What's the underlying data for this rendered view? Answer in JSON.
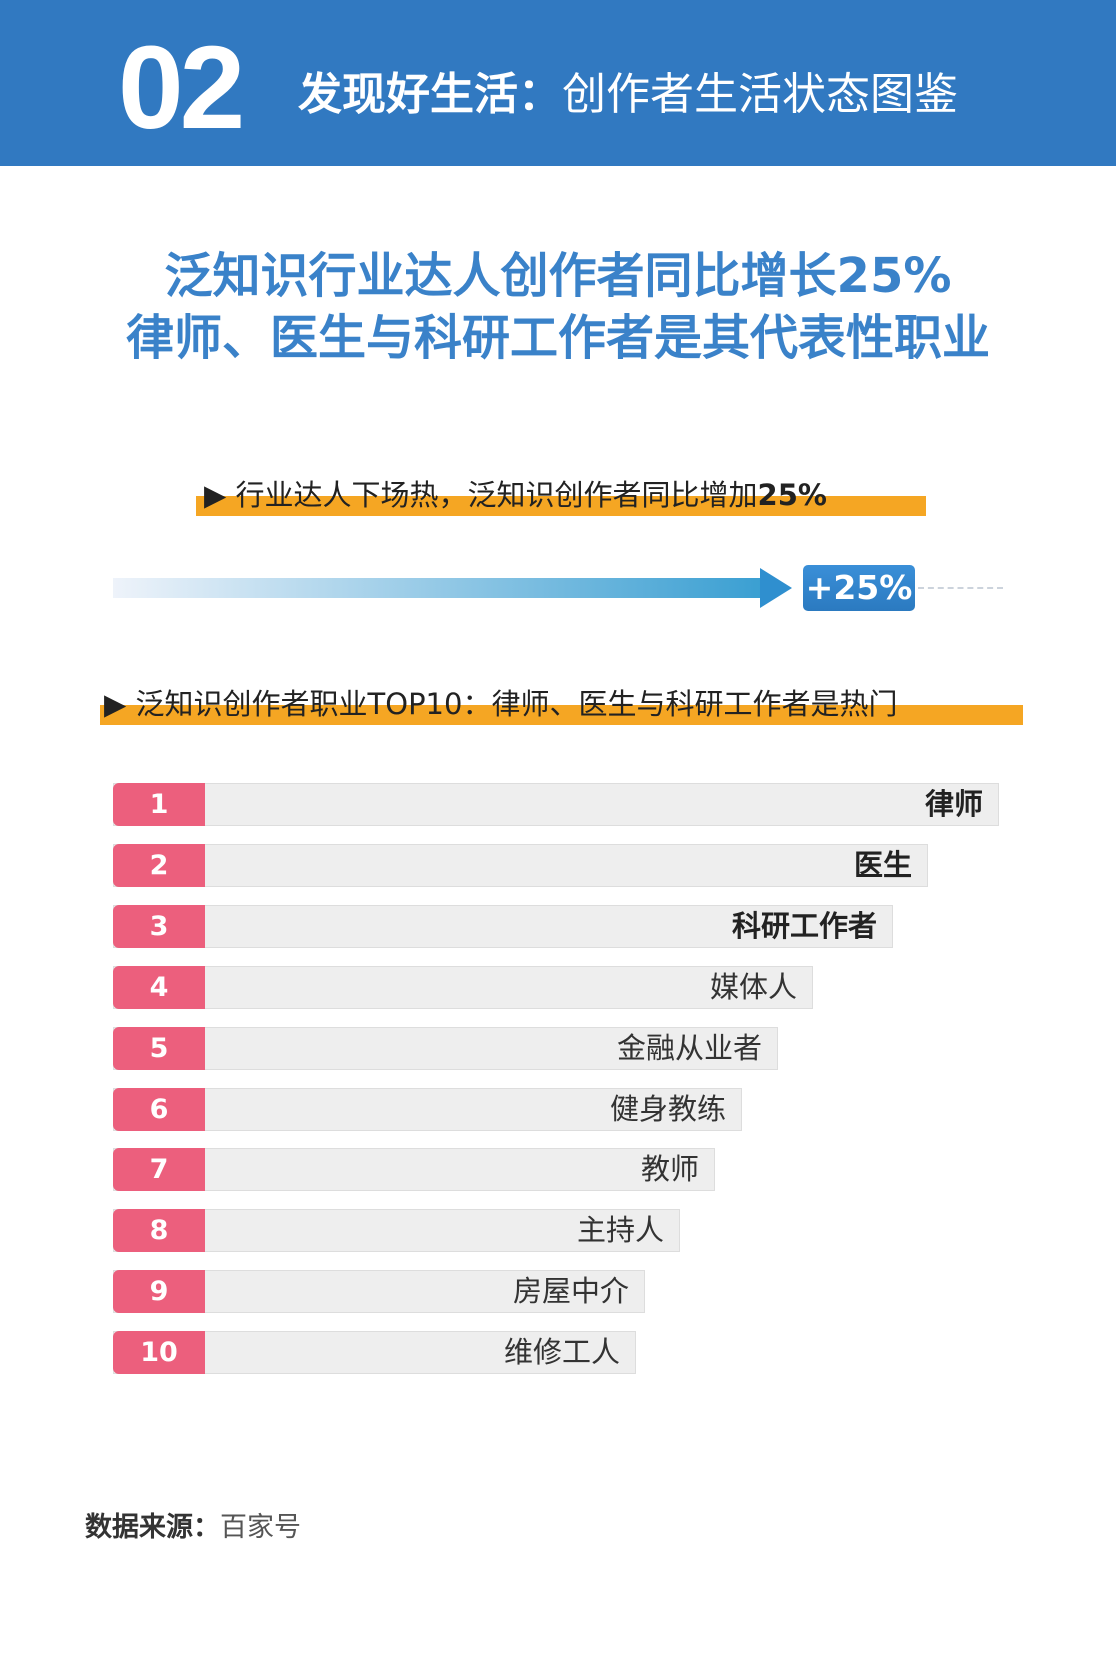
{
  "header": {
    "number": "02",
    "title_bold": "发现好生活：",
    "title_light": "创作者生活状态图鉴",
    "color": "#3179c1"
  },
  "headline": {
    "line1": "泛知识行业达人创作者同比增长25%",
    "line2": "律师、医生与科研工作者是其代表性职业",
    "color": "#3a82c9"
  },
  "section1": {
    "marker": "▶",
    "text": "行业达人下场热，泛知识创作者同比增加",
    "highlight": "25%",
    "badge": "+25%"
  },
  "section2": {
    "marker": "▶",
    "text": "泛知识创作者职业TOP10：律师、医生与科研工作者是热门"
  },
  "chart_data": {
    "type": "bar",
    "orientation": "horizontal",
    "categories": [
      "律师",
      "医生",
      "科研工作者",
      "媒体人",
      "金融从业者",
      "健身教练",
      "教师",
      "主持人",
      "房屋中介",
      "维修工人"
    ],
    "ranks": [
      "1",
      "2",
      "3",
      "4",
      "5",
      "6",
      "7",
      "8",
      "9",
      "10"
    ],
    "relative_values": [
      100,
      92,
      88,
      79,
      75,
      71,
      68,
      64,
      60,
      59
    ],
    "bold_top": 3,
    "rank_color": "#ec5f7d",
    "bar_color": "#eeeeee"
  },
  "source": {
    "label": "数据来源：",
    "value": "百家号"
  }
}
